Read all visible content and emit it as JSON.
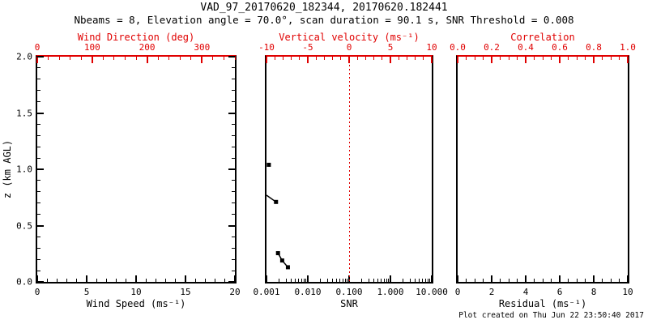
{
  "header": {
    "title": "VAD_97_20170620_182344, 20170620.182441",
    "subtitle": "Nbeams = 8, Elevation angle = 70.0°, scan duration = 90.1 s, SNR Threshold = 0.008"
  },
  "footer": {
    "created": "Plot created on Thu Jun 22 23:50:40 2017"
  },
  "ylabel": "z (km AGL)",
  "colors": {
    "primary_axis": "#000000",
    "secondary_axis": "#e00000",
    "background": "#ffffff",
    "data": "#000000"
  },
  "chart_data": [
    {
      "type": "scatter",
      "name": "wind-panel",
      "ylim": [
        0.0,
        2.0
      ],
      "axes": {
        "top": {
          "label": "Wind Direction (deg)",
          "min": 0,
          "max": 360,
          "tick_values": [
            0,
            100,
            200,
            300
          ],
          "tick_labels": [
            "0",
            "100",
            "200",
            "300"
          ],
          "minor_step": 20,
          "color": "#e00000"
        },
        "bottom": {
          "label": "Wind Speed (ms⁻¹)",
          "min": 0,
          "max": 20,
          "tick_values": [
            0,
            5,
            10,
            15,
            20
          ],
          "tick_labels": [
            "0",
            "5",
            "10",
            "15",
            "20"
          ],
          "minor_step": 1,
          "color": "#000000"
        },
        "y": {
          "label": "z (km AGL)",
          "min": 0.0,
          "max": 2.0,
          "tick_values": [
            0.0,
            0.5,
            1.0,
            1.5,
            2.0
          ],
          "tick_labels": [
            "0.0",
            "0.5",
            "1.0",
            "1.5",
            "2.0"
          ],
          "minor_step": 0.1,
          "color": "#000000"
        }
      },
      "points": [],
      "segments": []
    },
    {
      "type": "scatter-line",
      "name": "snr-panel",
      "ylim": [
        0.0,
        2.0
      ],
      "axes": {
        "top": {
          "label": "Vertical velocity (ms⁻¹)",
          "min": -10,
          "max": 10,
          "tick_values": [
            -10,
            -5,
            0,
            5,
            10
          ],
          "tick_labels": [
            "-10",
            "-5",
            "0",
            "5",
            "10"
          ],
          "minor_step": 1,
          "color": "#e00000"
        },
        "bottom": {
          "label": "SNR",
          "scale": "log",
          "min": 0.001,
          "max": 10,
          "tick_values": [
            0.001,
            0.01,
            0.1,
            1,
            10
          ],
          "tick_labels": [
            "0.001",
            "0.010",
            "0.100",
            "1.000",
            "10.000"
          ],
          "color": "#000000"
        }
      },
      "reference_line": {
        "axis": "top",
        "value": 0,
        "style": "dotted",
        "color": "#e00000"
      },
      "points": [
        {
          "snr": 0.00114,
          "z": 1.04
        },
        {
          "snr": 0.0017,
          "z": 0.71
        },
        {
          "snr": 0.0019,
          "z": 0.255
        },
        {
          "snr": 0.0024,
          "z": 0.19
        },
        {
          "snr": 0.0033,
          "z": 0.13
        }
      ],
      "segments": [
        [
          {
            "snr": 0.001,
            "z": 0.77
          },
          {
            "snr": 0.0017,
            "z": 0.71
          }
        ],
        [
          {
            "snr": 0.0019,
            "z": 0.255
          },
          {
            "snr": 0.0024,
            "z": 0.19
          }
        ],
        [
          {
            "snr": 0.0024,
            "z": 0.19
          },
          {
            "snr": 0.0033,
            "z": 0.13
          }
        ]
      ]
    },
    {
      "type": "scatter",
      "name": "residual-panel",
      "ylim": [
        0.0,
        2.0
      ],
      "axes": {
        "top": {
          "label": "Correlation",
          "min": 0.0,
          "max": 1.0,
          "tick_values": [
            0.0,
            0.2,
            0.4,
            0.6,
            0.8,
            1.0
          ],
          "tick_labels": [
            "0.0",
            "0.2",
            "0.4",
            "0.6",
            "0.8",
            "1.0"
          ],
          "minor_step": 0.05,
          "color": "#e00000"
        },
        "bottom": {
          "label": "Residual (ms⁻¹)",
          "min": 0,
          "max": 10,
          "tick_values": [
            0,
            2,
            4,
            6,
            8,
            10
          ],
          "tick_labels": [
            "0",
            "2",
            "4",
            "6",
            "8",
            "10"
          ],
          "minor_step": 0.5,
          "color": "#000000"
        }
      },
      "points": [],
      "segments": []
    }
  ]
}
